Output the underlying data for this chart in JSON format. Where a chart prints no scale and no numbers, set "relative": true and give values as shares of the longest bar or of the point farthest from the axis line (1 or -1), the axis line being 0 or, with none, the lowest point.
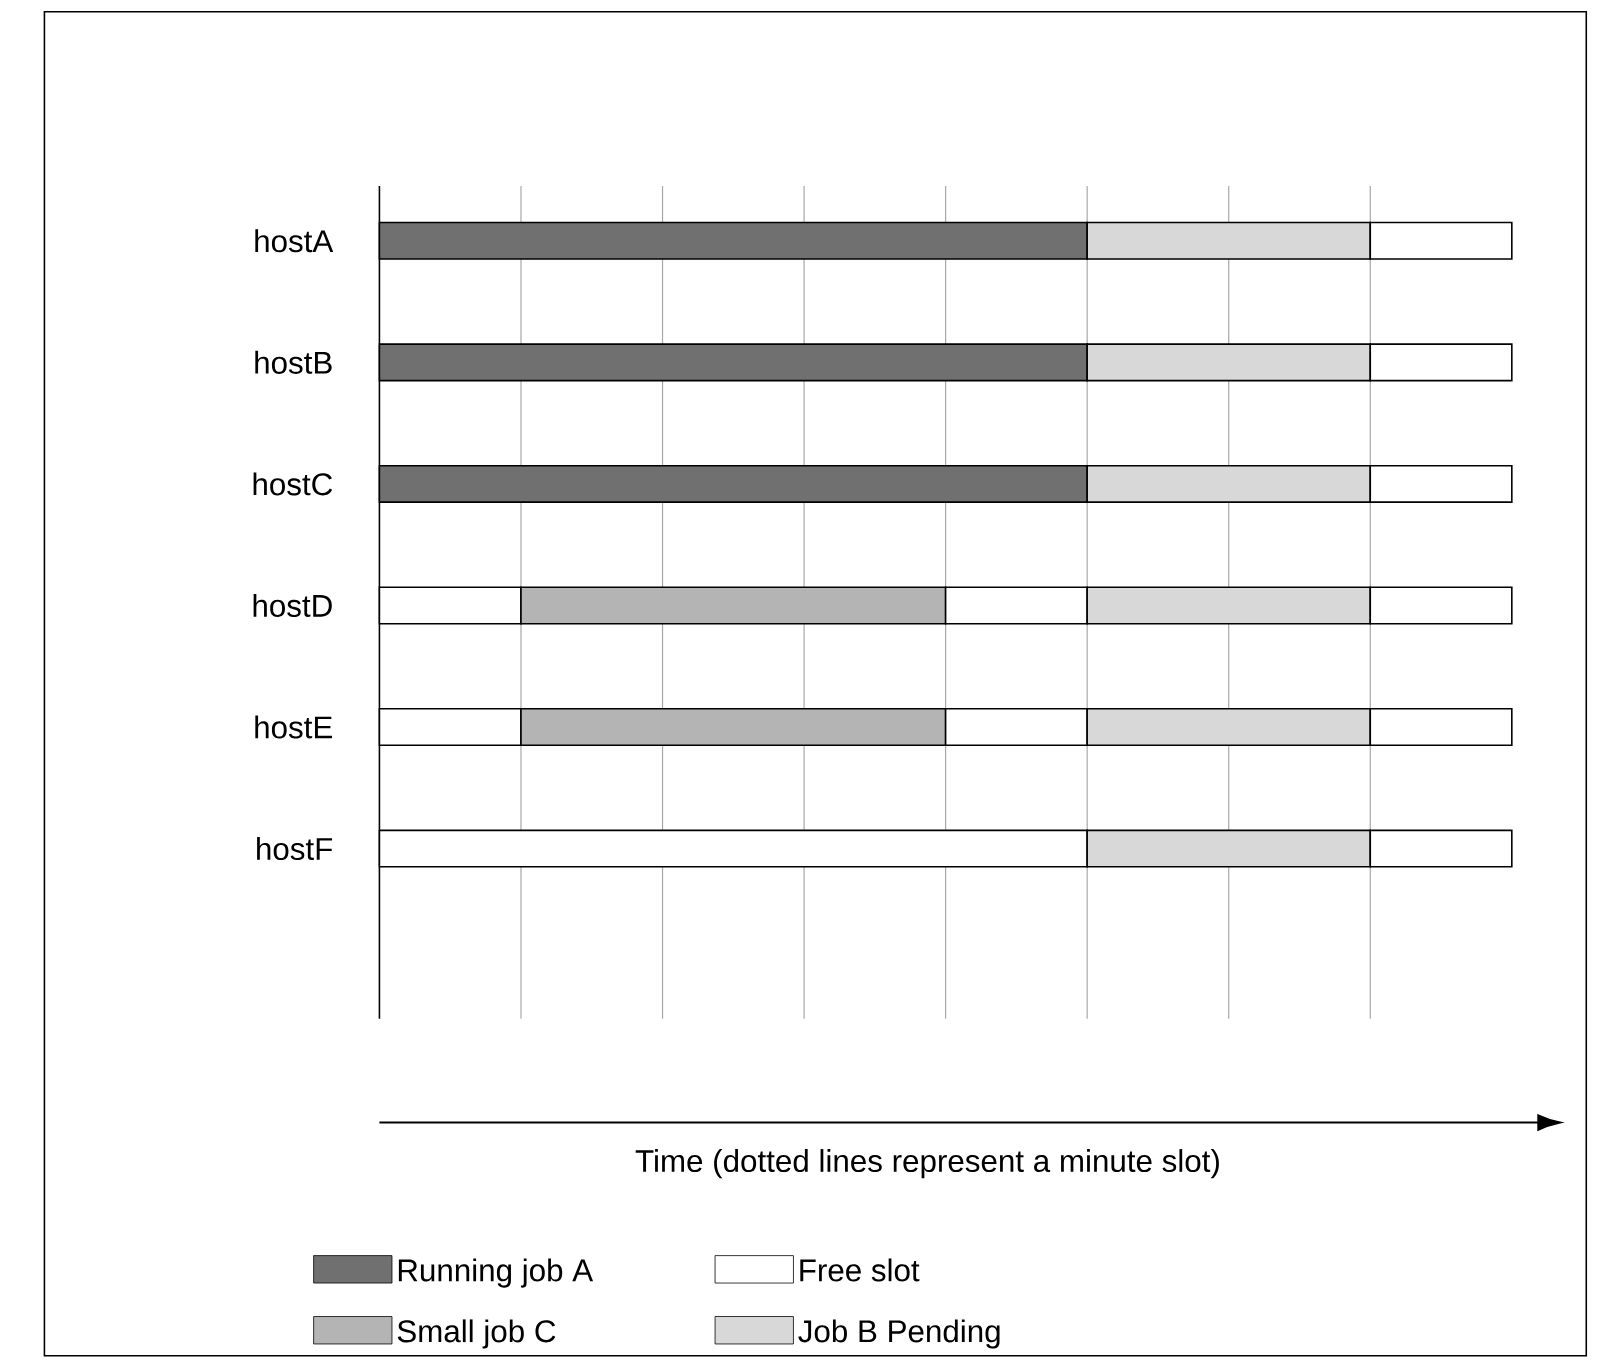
{
  "chart_data": {
    "type": "bar",
    "orientation": "horizontal",
    "stacked": true,
    "relative": true,
    "xlabel": "Time (dotted lines represent a minute slot)",
    "categories": [
      "hostA",
      "hostB",
      "hostC",
      "hostD",
      "hostE",
      "hostF"
    ],
    "series": [
      {
        "name": "Running job A",
        "color": "#707070",
        "values": [
          0.625,
          0.625,
          0.625,
          null,
          null,
          null
        ]
      },
      {
        "name": "Free slot",
        "color": "#ffffff",
        "values": [
          null,
          null,
          null,
          0.125,
          0.125,
          0.625
        ]
      },
      {
        "name": "Small job C",
        "color": "#b4b4b4",
        "values": [
          null,
          null,
          null,
          0.375,
          0.375,
          null
        ]
      },
      {
        "color": "#ffffff",
        "values": [
          null,
          null,
          null,
          0.125,
          0.125,
          null
        ]
      },
      {
        "name": "Job B Pending",
        "color": "#d8d8d8",
        "values": [
          0.25,
          0.25,
          0.25,
          0.25,
          0.25,
          0.25
        ]
      },
      {
        "color": "#ffffff",
        "values": [
          0.125,
          0.125,
          0.125,
          0.125,
          0.125,
          0.125
        ]
      }
    ],
    "grid": "x",
    "legend": "bottom"
  }
}
